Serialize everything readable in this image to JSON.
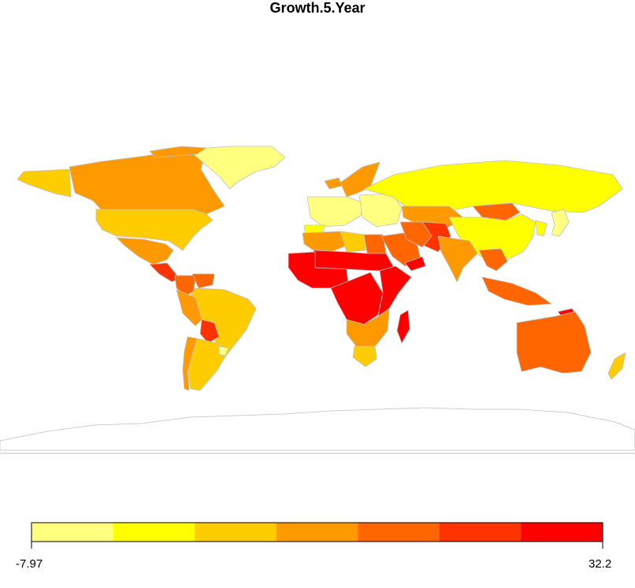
{
  "title": "Growth.5.Year",
  "legend": {
    "min_label": "-7.97",
    "max_label": "32.2",
    "min": -7.97,
    "max": 32.2,
    "bins": 7,
    "colors": [
      "#FFFF80",
      "#FFFF00",
      "#FFCC00",
      "#FF9900",
      "#FF6600",
      "#FF3300",
      "#FF0000"
    ]
  },
  "map": {
    "border_color": "#C0C0C0",
    "antarctica_fill": "#FFFFFF",
    "regions": [
      {
        "name": "Alaska",
        "bin": 2
      },
      {
        "name": "Canada",
        "bin": 3
      },
      {
        "name": "Greenland",
        "bin": 0
      },
      {
        "name": "Arctic Islands",
        "bin": 3
      },
      {
        "name": "United States",
        "bin": 2
      },
      {
        "name": "Mexico",
        "bin": 3
      },
      {
        "name": "Central America",
        "bin": 5
      },
      {
        "name": "Colombia",
        "bin": 4
      },
      {
        "name": "Venezuela",
        "bin": 4
      },
      {
        "name": "Brazil",
        "bin": 2
      },
      {
        "name": "Peru",
        "bin": 3
      },
      {
        "name": "Bolivia",
        "bin": 5
      },
      {
        "name": "Argentina",
        "bin": 2
      },
      {
        "name": "Chile",
        "bin": 3
      },
      {
        "name": "Uruguay",
        "bin": 0
      },
      {
        "name": "Iceland",
        "bin": 3
      },
      {
        "name": "Scandinavia",
        "bin": 3
      },
      {
        "name": "Western Europe",
        "bin": 0
      },
      {
        "name": "Iberia",
        "bin": 1
      },
      {
        "name": "Eastern Europe",
        "bin": 0
      },
      {
        "name": "Russia",
        "bin": 1
      },
      {
        "name": "Kazakhstan",
        "bin": 3
      },
      {
        "name": "Mongolia",
        "bin": 4
      },
      {
        "name": "China",
        "bin": 1
      },
      {
        "name": "Korea",
        "bin": 1
      },
      {
        "name": "Japan",
        "bin": 0
      },
      {
        "name": "North Africa",
        "bin": 3
      },
      {
        "name": "Libya",
        "bin": 2
      },
      {
        "name": "Egypt",
        "bin": 4
      },
      {
        "name": "Sahel",
        "bin": 6
      },
      {
        "name": "West Africa",
        "bin": 6
      },
      {
        "name": "Central Africa",
        "bin": 6
      },
      {
        "name": "East Africa",
        "bin": 6
      },
      {
        "name": "Southern Africa",
        "bin": 3
      },
      {
        "name": "South Africa",
        "bin": 2
      },
      {
        "name": "Madagascar",
        "bin": 6
      },
      {
        "name": "Arabia",
        "bin": 4
      },
      {
        "name": "Yemen",
        "bin": 6
      },
      {
        "name": "Iran",
        "bin": 4
      },
      {
        "name": "Afghanistan Pakistan",
        "bin": 5
      },
      {
        "name": "India",
        "bin": 3
      },
      {
        "name": "Southeast Asia",
        "bin": 4
      },
      {
        "name": "Indonesia",
        "bin": 4
      },
      {
        "name": "Papua New Guinea",
        "bin": 6
      },
      {
        "name": "Australia",
        "bin": 4
      },
      {
        "name": "New Zealand",
        "bin": 2
      },
      {
        "name": "Antarctica",
        "bin": -1
      }
    ]
  }
}
